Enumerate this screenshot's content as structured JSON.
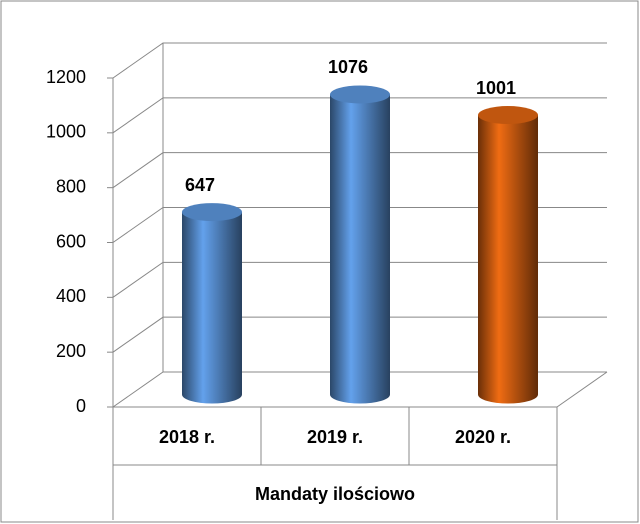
{
  "chart_data": {
    "type": "bar",
    "categories": [
      "2018 r.",
      "2019 r.",
      "2020 r."
    ],
    "values": [
      647,
      1076,
      1001
    ],
    "colors": [
      "#4f81bd",
      "#4f81bd",
      "#c0560f"
    ],
    "xlabel": "Mandaty ilościowo",
    "ylim": [
      0,
      1200
    ],
    "yticks": [
      0,
      200,
      400,
      600,
      800,
      1000,
      1200
    ],
    "grid": true
  }
}
